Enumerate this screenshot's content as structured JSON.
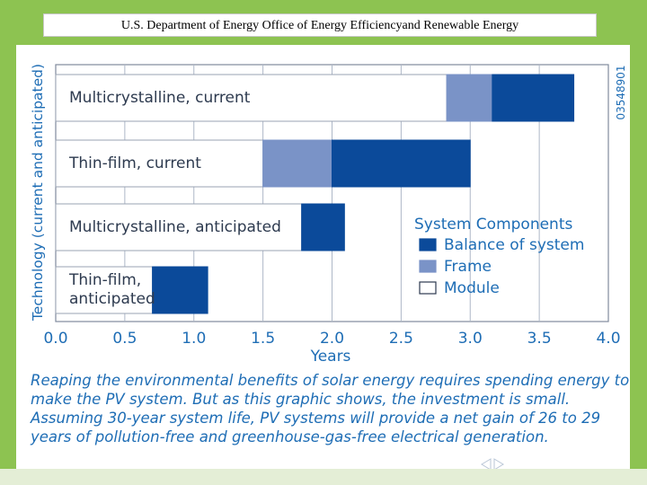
{
  "banner": {
    "title": "U.S. Department of Energy Office of Energy Efficiencyand Renewable Energy"
  },
  "caption": "Reaping the environmental benefits of solar energy requires spending energy to make the PV system. But as this graphic shows, the investment is small. Assuming 30-year system life, PV systems will provide a net gain of 26 to 29 years of pollution-free and greenhouse-gas-free electrical generation.",
  "figure_id": "03548901",
  "colors": {
    "slide_green": "#8dc351",
    "balance_of_system": "#0b4a9a",
    "frame": "#7a93c7",
    "module": "#ffffff",
    "text_blue": "#1e6db5",
    "grid": "#aeb7c7"
  },
  "nav_icon": "prev-next-arrows-icon",
  "chart_data": {
    "type": "bar",
    "orientation": "horizontal",
    "stacked": true,
    "title": "",
    "xlabel": "Years",
    "ylabel": "Technology (current and anticipated)",
    "xlim": [
      0.0,
      4.0
    ],
    "x_ticks": [
      "0.0",
      "0.5",
      "1.0",
      "1.5",
      "2.0",
      "2.5",
      "3.0",
      "3.5",
      "4.0"
    ],
    "grid": true,
    "legend_title": "System Components",
    "legend_position": "right",
    "categories": [
      "Multicrystalline, current",
      "Thin-film, current",
      "Multicrystalline, anticipated",
      "Thin-film, anticipated"
    ],
    "category_lines": [
      [
        "Multicrystalline, current"
      ],
      [
        "Thin-film, current"
      ],
      [
        "Multicrystalline, anticipated"
      ],
      [
        "Thin-film,",
        "anticipated"
      ]
    ],
    "series": [
      {
        "name": "Module",
        "color": "#ffffff",
        "values": [
          2.83,
          1.5,
          1.78,
          0.7
        ]
      },
      {
        "name": "Frame",
        "color": "#7a93c7",
        "values": [
          0.33,
          0.5,
          0.0,
          0.0
        ]
      },
      {
        "name": "Balance of system",
        "color": "#0b4a9a",
        "values": [
          0.59,
          1.0,
          0.31,
          0.4
        ]
      }
    ],
    "legend_order": [
      "Balance of system",
      "Frame",
      "Module"
    ]
  }
}
